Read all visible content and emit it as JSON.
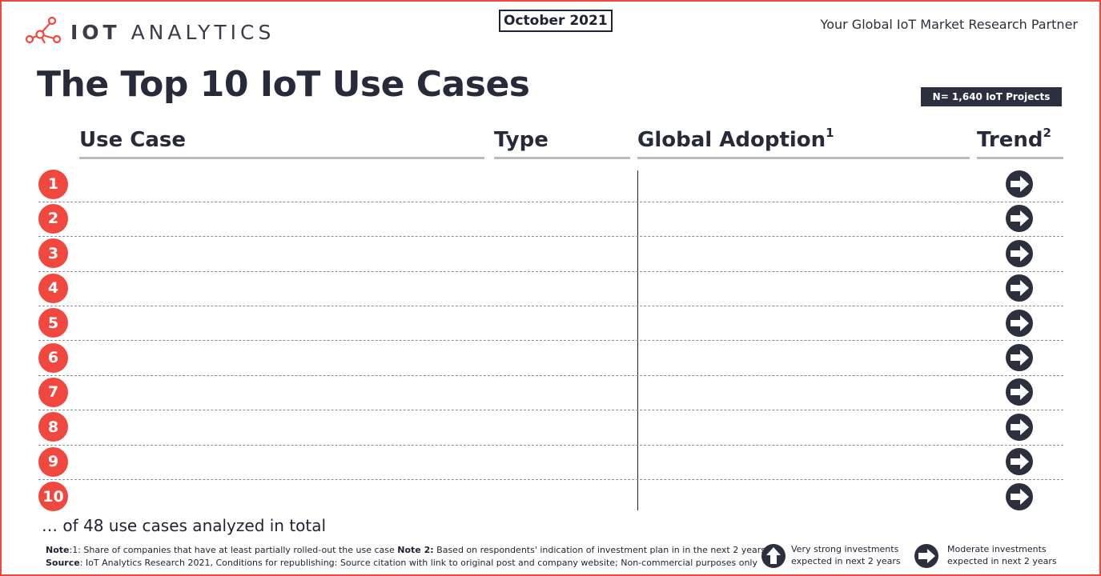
{
  "header": {
    "brand_bold": "IOT",
    "brand_light": "ANALYTICS",
    "date": "October 2021",
    "tagline": "Your Global IoT Market Research Partner"
  },
  "title": "The Top 10 IoT Use Cases",
  "sample_badge": "N= 1,640 IoT Projects",
  "columns": {
    "use_case": "Use Case",
    "type": "Type",
    "adoption": "Global Adoption",
    "adoption_sup": "1",
    "trend": "Trend",
    "trend_sup": "2"
  },
  "chart_data": {
    "type": "table",
    "rows": [
      {
        "rank": "1",
        "trend": "moderate"
      },
      {
        "rank": "2",
        "trend": "moderate"
      },
      {
        "rank": "3",
        "trend": "moderate"
      },
      {
        "rank": "4",
        "trend": "moderate"
      },
      {
        "rank": "5",
        "trend": "moderate"
      },
      {
        "rank": "6",
        "trend": "moderate"
      },
      {
        "rank": "7",
        "trend": "moderate"
      },
      {
        "rank": "8",
        "trend": "moderate"
      },
      {
        "rank": "9",
        "trend": "moderate"
      },
      {
        "rank": "10",
        "trend": "moderate"
      }
    ]
  },
  "footer": {
    "total": "… of 48 use cases analyzed in total",
    "note_label": "Note",
    "note_1_text": ":1: Share of companies that have at least partially rolled-out the use case ",
    "note_2_label": "Note 2:",
    "note_2_text": " Based on respondents' indication of investment plan in in the next 2 years",
    "source_label": "Source",
    "source_text": ": IoT Analytics Research 2021, Conditions for republishing: Source citation with link to original post and company website; Non-commercial purposes only"
  },
  "legend": {
    "strong_line1": "Very strong investments",
    "strong_line2": "expected in next 2 years",
    "moderate_line1": "Moderate investments",
    "moderate_line2": "expected in next 2 years",
    "icon_strong": "up-arrow-circle-icon",
    "icon_moderate": "right-arrow-circle-icon"
  },
  "colors": {
    "accent": "#f0483e",
    "dark": "#2c303e"
  }
}
